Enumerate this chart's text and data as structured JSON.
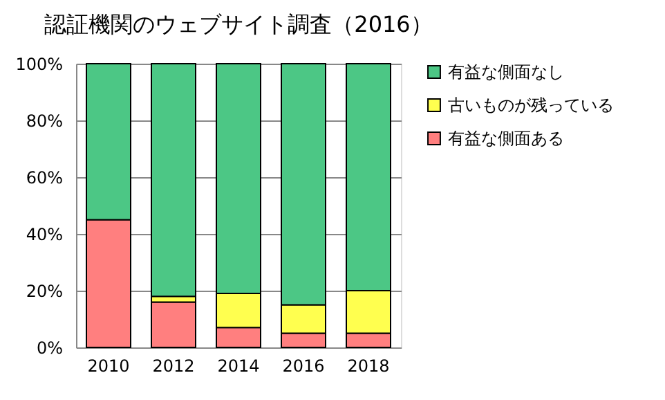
{
  "chart_data": {
    "type": "bar",
    "title": "認証機関のウェブサイト調査（2016）",
    "categories": [
      "2010",
      "2012",
      "2014",
      "2016",
      "2018"
    ],
    "stacked": true,
    "series": [
      {
        "name": "有益な側面ある",
        "color": "#ff7f7f",
        "values": [
          45,
          16,
          7,
          5,
          5
        ]
      },
      {
        "name": "古いものが残っている",
        "color": "#ffff4f",
        "values": [
          null,
          2,
          12,
          10,
          15
        ]
      },
      {
        "name": "有益な側面なし",
        "color": "#4cc785",
        "values": [
          55,
          82,
          81,
          85,
          80
        ]
      }
    ],
    "ylim": [
      0,
      100
    ],
    "yticks": [
      {
        "value": 0,
        "label": "0%"
      },
      {
        "value": 20,
        "label": "20%"
      },
      {
        "value": 40,
        "label": "40%"
      },
      {
        "value": 60,
        "label": "60%"
      },
      {
        "value": 80,
        "label": "80%"
      },
      {
        "value": 100,
        "label": "100%"
      }
    ],
    "grid": "y",
    "legend": "right"
  }
}
